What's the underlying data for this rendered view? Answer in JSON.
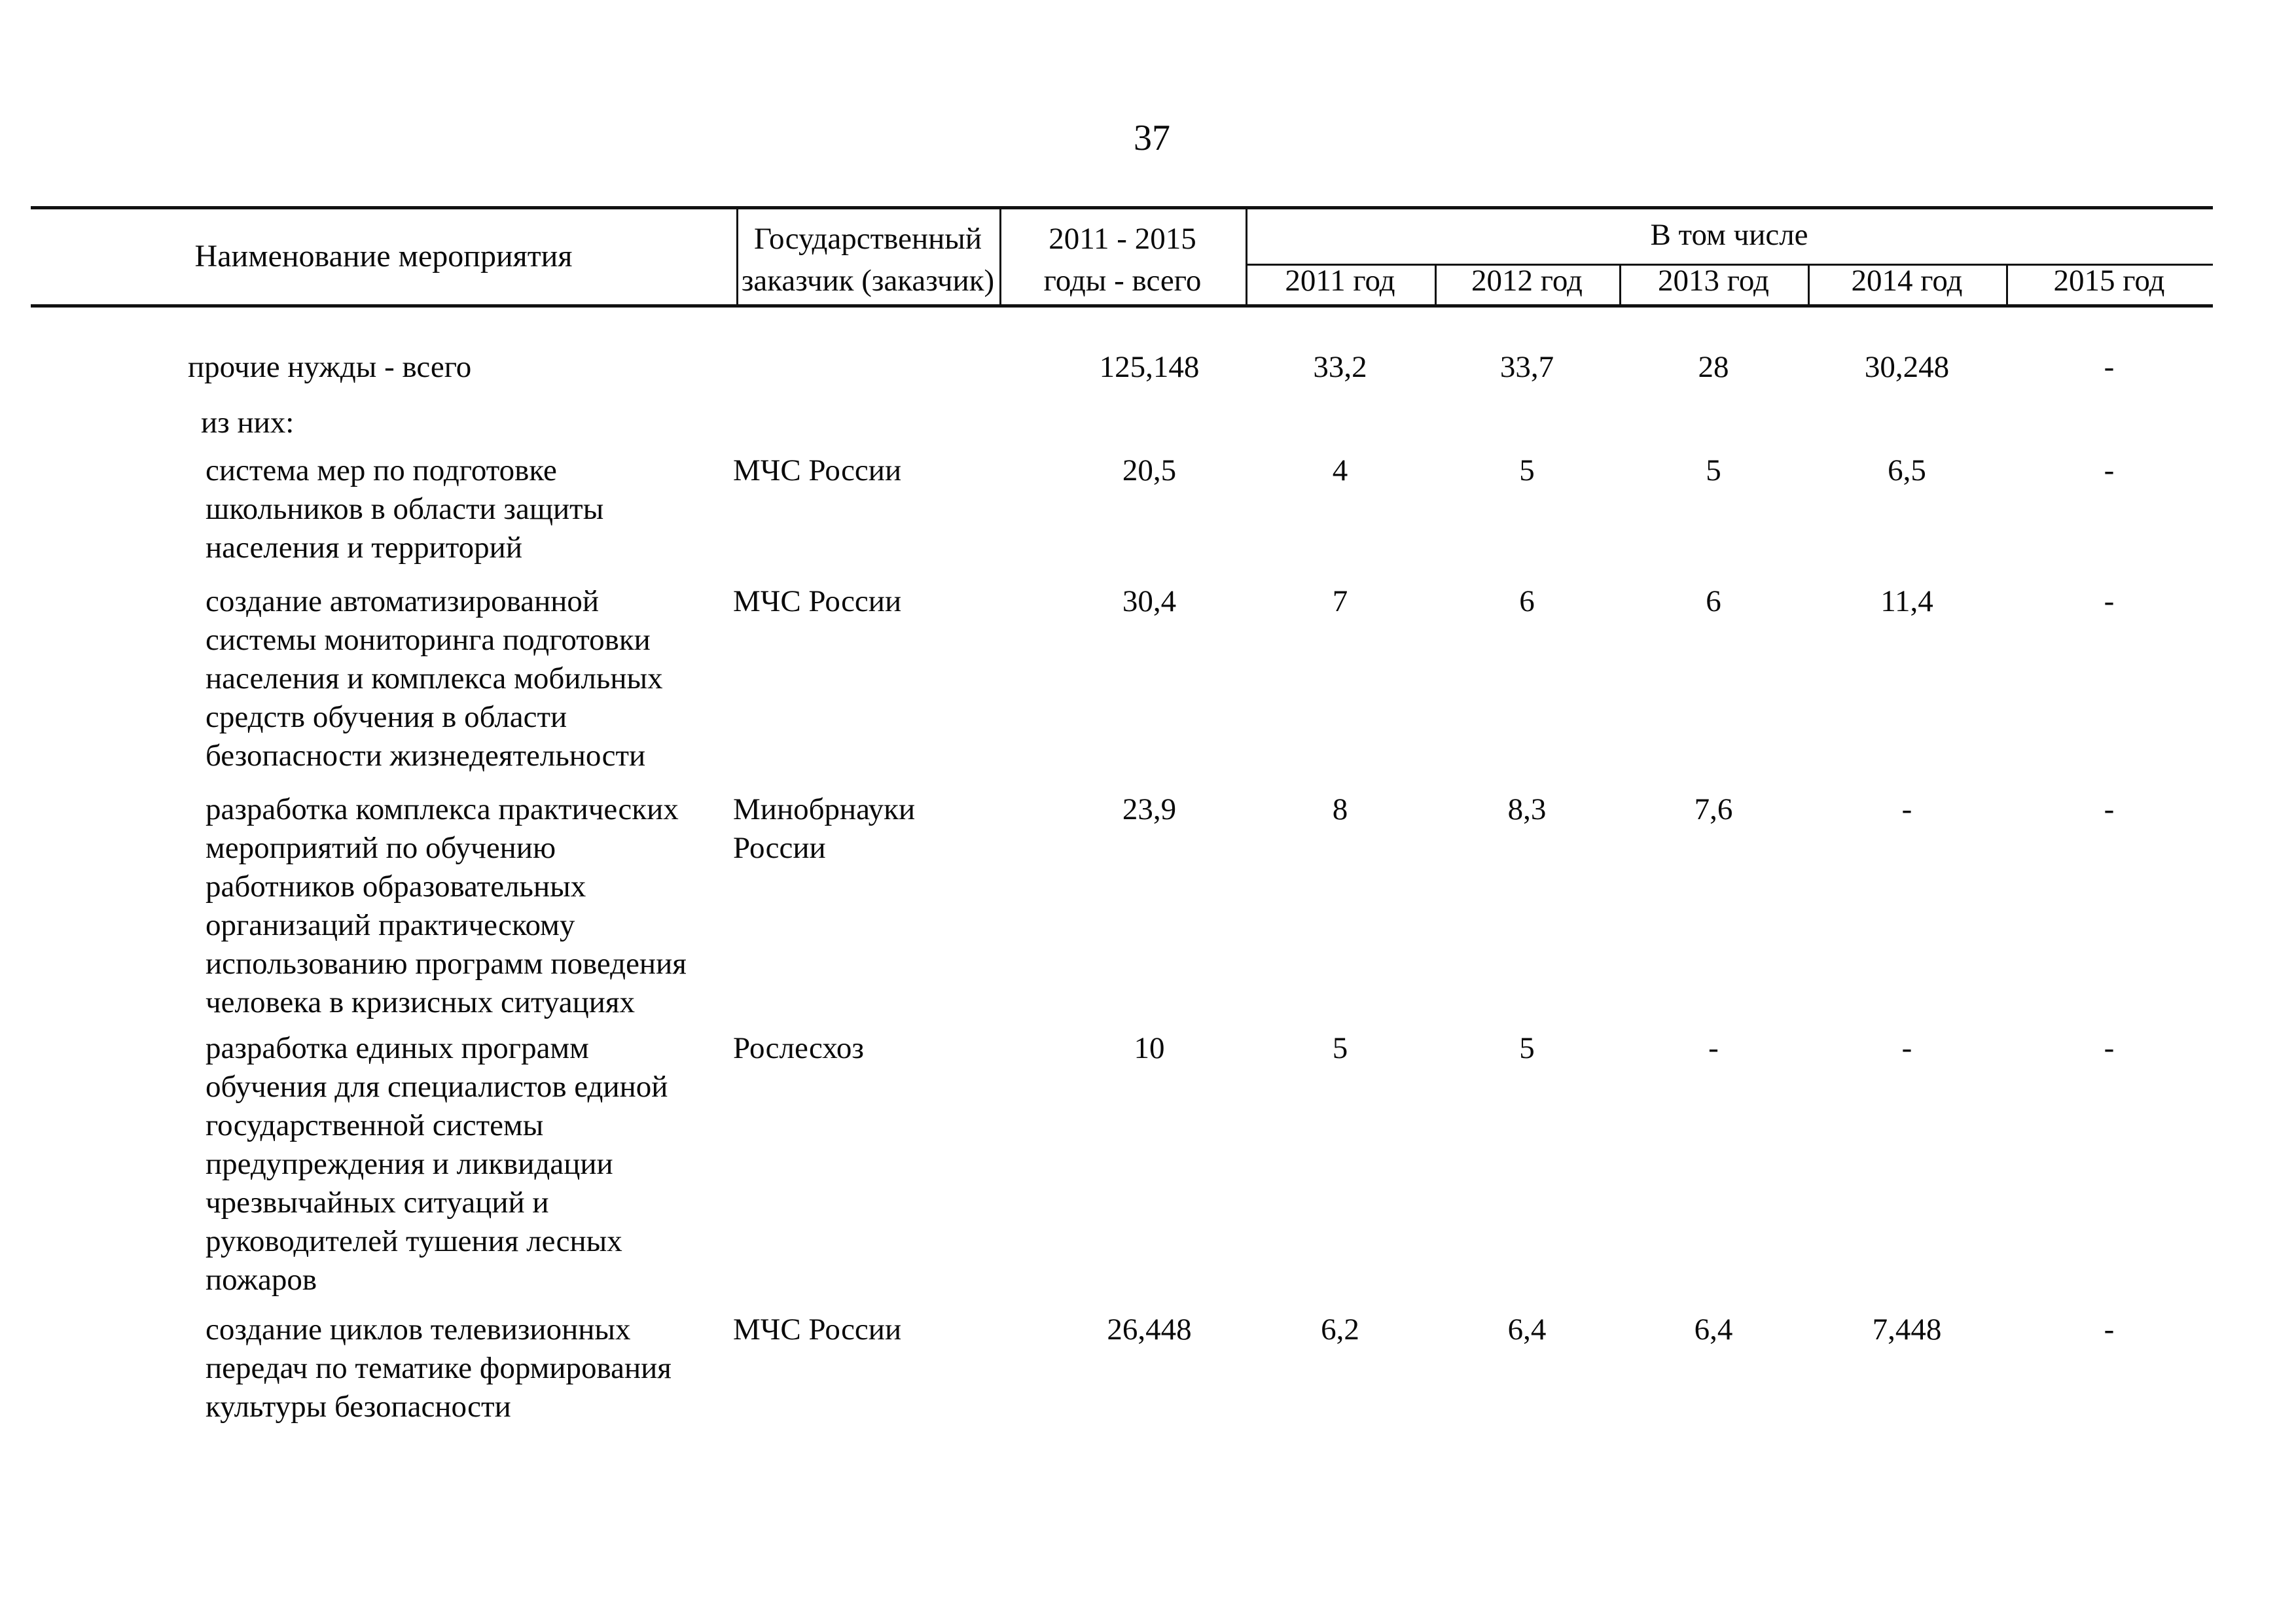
{
  "page_number": "37",
  "table": {
    "headers": {
      "name": "Наименование мероприятия",
      "customer": "Государственный\nзаказчик (заказчик)",
      "total": "2011 - 2015\nгоды - всего",
      "group": "В том числе",
      "years": [
        "2011 год",
        "2012 год",
        "2013 год",
        "2014 год",
        "2015 год"
      ]
    },
    "rows": [
      {
        "name": "прочие нужды - всего",
        "customer": "",
        "total": "125,148",
        "y2011": "33,2",
        "y2012": "33,7",
        "y2013": "28",
        "y2014": "30,248",
        "y2015": "-"
      },
      {
        "name": "из них:"
      },
      {
        "name": "система мер по подготовке\nшкольников в области защиты\nнаселения и территорий",
        "customer": "МЧС России",
        "total": "20,5",
        "y2011": "4",
        "y2012": "5",
        "y2013": "5",
        "y2014": "6,5",
        "y2015": "-"
      },
      {
        "name": "создание автоматизированной\nсистемы мониторинга подготовки\nнаселения и комплекса мобильных\nсредств обучения в области\nбезопасности жизнедеятельности",
        "customer": "МЧС России",
        "total": "30,4",
        "y2011": "7",
        "y2012": "6",
        "y2013": "6",
        "y2014": "11,4",
        "y2015": "-"
      },
      {
        "name": "разработка комплекса практических\nмероприятий по обучению\nработников образовательных\nорганизаций практическому\nиспользованию программ поведения\nчеловека в кризисных ситуациях",
        "customer": "Минобрнауки\nРоссии",
        "total": "23,9",
        "y2011": "8",
        "y2012": "8,3",
        "y2013": "7,6",
        "y2014": "-",
        "y2015": "-"
      },
      {
        "name": "разработка единых программ\nобучения для специалистов единой\nгосударственной системы\nпредупреждения и ликвидации\nчрезвычайных ситуаций и\nруководителей тушения лесных\nпожаров",
        "customer": "Рослесхоз",
        "total": "10",
        "y2011": "5",
        "y2012": "5",
        "y2013": "-",
        "y2014": "-",
        "y2015": "-"
      },
      {
        "name": "создание циклов телевизионных\nпередач по тематике формирования\nкультуры безопасности",
        "customer": "МЧС России",
        "total": "26,448",
        "y2011": "6,2",
        "y2012": "6,4",
        "y2013": "6,4",
        "y2014": "7,448",
        "y2015": "-"
      }
    ]
  }
}
